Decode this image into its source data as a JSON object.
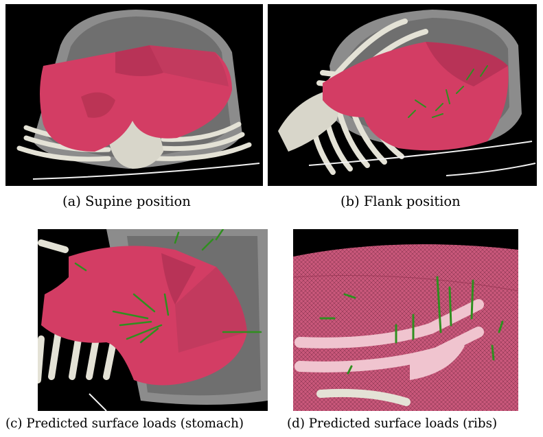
{
  "figure": {
    "panels": [
      {
        "label": "(a)",
        "caption": "Supine position"
      },
      {
        "label": "(b)",
        "caption": "Flank position"
      },
      {
        "label": "(c)",
        "caption": "Predicted surface loads (stomach)"
      },
      {
        "label": "(d)",
        "caption": "Predicted surface loads (ribs)"
      }
    ],
    "colors": {
      "liver": "#d33d64",
      "liver_dark": "#a82a4c",
      "bone": "#e4e2d6",
      "arrow": "#2f8f1f",
      "background": "#000000",
      "ct_slice": "#8a8a8a"
    }
  }
}
